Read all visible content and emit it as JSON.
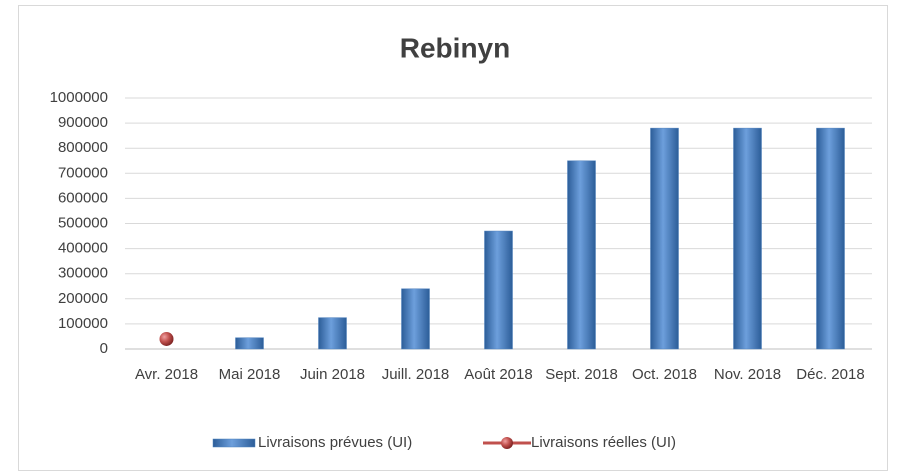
{
  "chart_data": {
    "type": "bar",
    "title": "Rebinyn",
    "categories": [
      "Avr. 2018",
      "Mai 2018",
      "Juin 2018",
      "Juill. 2018",
      "Août 2018",
      "Sept. 2018",
      "Oct. 2018",
      "Nov. 2018",
      "Déc. 2018"
    ],
    "series": [
      {
        "name": "Livraisons prévues (UI)",
        "type": "bar",
        "color": "#4f81bd",
        "values": [
          0,
          45000,
          125000,
          240000,
          470000,
          750000,
          880000,
          880000,
          880000
        ]
      },
      {
        "name": "Livraisons réelles (UI)",
        "type": "line",
        "color": "#c0504d",
        "values": [
          40000,
          null,
          null,
          null,
          null,
          null,
          null,
          null,
          null
        ]
      }
    ],
    "ylim": [
      0,
      1000000
    ],
    "yticks": [
      0,
      100000,
      200000,
      300000,
      400000,
      500000,
      600000,
      700000,
      800000,
      900000,
      1000000
    ],
    "grid": true,
    "legend": "bottom"
  }
}
